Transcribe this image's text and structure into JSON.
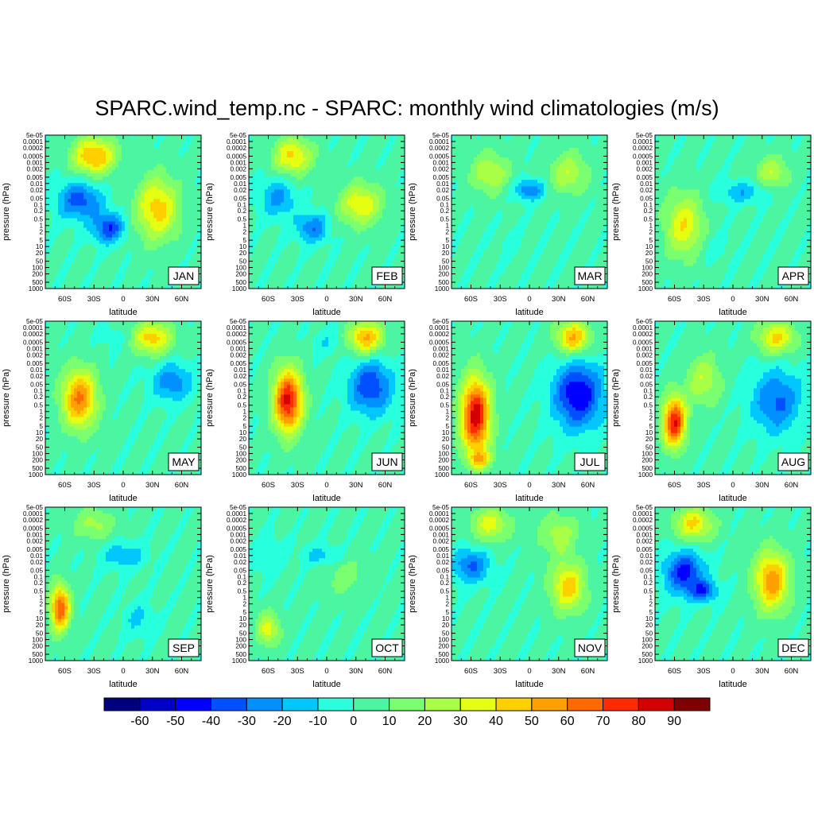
{
  "title": "SPARC.wind_temp.nc - SPARC: monthly wind climatologies (m/s)",
  "chart_data": {
    "type": "heatmap",
    "xlabel": "latitude",
    "ylabel": "pressure (hPa)",
    "x_ticks": [
      "60S",
      "30S",
      "0",
      "30N",
      "60N"
    ],
    "x_tick_values": [
      -60,
      -30,
      0,
      30,
      60
    ],
    "xlim": [
      -80,
      80
    ],
    "y_ticks": [
      "5e-05",
      "0.0001",
      "0.0002",
      "0.0005",
      "0.001",
      "0.002",
      "0.005",
      "0.01",
      "0.02",
      "0.05",
      "0.1",
      "0.2",
      "0.5",
      "1",
      "2",
      "5",
      "10",
      "20",
      "50",
      "100",
      "200",
      "500",
      "1000"
    ],
    "y_scale": "log",
    "ylim": [
      1000,
      5e-05
    ],
    "colorbar": {
      "labels": [
        "-60",
        "-50",
        "-40",
        "-30",
        "-20",
        "-10",
        "0",
        "10",
        "20",
        "30",
        "40",
        "50",
        "60",
        "70",
        "80",
        "90"
      ],
      "colors": [
        "#00007f",
        "#0000c8",
        "#0000ff",
        "#0050ff",
        "#0090ff",
        "#00c8ff",
        "#29ffdc",
        "#4cf5a0",
        "#7aff6e",
        "#a8ff45",
        "#e4ff12",
        "#ffd000",
        "#ffa000",
        "#ff6a00",
        "#ff2a00",
        "#d40000",
        "#7f0000"
      ]
    },
    "panels": [
      {
        "label": "JAN",
        "blobs": [
          {
            "lat": -45,
            "logp": -1.2,
            "w": 0.2,
            "dlat": 22,
            "dlp": 0.9
          },
          {
            "lat": -15,
            "logp": 0.1,
            "w": 0.18,
            "dlat": 16,
            "dlp": 0.7
          },
          {
            "lat": -30,
            "logp": -3.3,
            "w": 0.72,
            "dlat": 22,
            "dlp": 0.9
          },
          {
            "lat": 35,
            "logp": -0.8,
            "w": 0.68,
            "dlat": 22,
            "dlp": 1.5
          }
        ]
      },
      {
        "label": "FEB",
        "blobs": [
          {
            "lat": -50,
            "logp": -1.3,
            "w": 0.27,
            "dlat": 18,
            "dlp": 0.9
          },
          {
            "lat": -15,
            "logp": 0.1,
            "w": 0.24,
            "dlat": 16,
            "dlp": 0.7
          },
          {
            "lat": -35,
            "logp": -3.3,
            "w": 0.66,
            "dlat": 20,
            "dlp": 0.9
          },
          {
            "lat": 35,
            "logp": -1.0,
            "w": 0.64,
            "dlat": 22,
            "dlp": 1.0
          }
        ]
      },
      {
        "label": "MAR",
        "blobs": [
          {
            "lat": 0,
            "logp": -1.7,
            "w": 0.24,
            "dlat": 16,
            "dlp": 0.5
          },
          {
            "lat": -40,
            "logp": -2.5,
            "w": 0.58,
            "dlat": 20,
            "dlp": 1.0
          },
          {
            "lat": 40,
            "logp": -2.5,
            "w": 0.58,
            "dlat": 20,
            "dlp": 1.0
          },
          {
            "lat": -20,
            "logp": 0.8,
            "w": 0.4,
            "dlat": 15,
            "dlp": 0.8
          }
        ]
      },
      {
        "label": "APR",
        "blobs": [
          {
            "lat": 10,
            "logp": -1.6,
            "w": 0.3,
            "dlat": 25,
            "dlp": 0.5
          },
          {
            "lat": -50,
            "logp": 0.0,
            "w": 0.64,
            "dlat": 20,
            "dlp": 1.5
          },
          {
            "lat": 40,
            "logp": -2.5,
            "w": 0.58,
            "dlat": 18,
            "dlp": 0.8
          },
          {
            "lat": -20,
            "logp": 1.0,
            "w": 0.38,
            "dlat": 15,
            "dlp": 0.7
          }
        ]
      },
      {
        "label": "MAY",
        "blobs": [
          {
            "lat": -45,
            "logp": -0.6,
            "w": 0.77,
            "dlat": 18,
            "dlp": 1.4
          },
          {
            "lat": 50,
            "logp": -1.4,
            "w": 0.25,
            "dlat": 20,
            "dlp": 0.9
          },
          {
            "lat": 30,
            "logp": -3.5,
            "w": 0.68,
            "dlat": 20,
            "dlp": 0.8
          },
          {
            "lat": -10,
            "logp": -3.5,
            "w": 0.38,
            "dlat": 15,
            "dlp": 0.6
          }
        ]
      },
      {
        "label": "JUN",
        "blobs": [
          {
            "lat": -40,
            "logp": -0.5,
            "w": 0.9,
            "dlat": 15,
            "dlp": 1.5
          },
          {
            "lat": 45,
            "logp": -1.2,
            "w": 0.18,
            "dlat": 22,
            "dlp": 1.3
          },
          {
            "lat": 40,
            "logp": -3.5,
            "w": 0.72,
            "dlat": 18,
            "dlp": 0.8
          },
          {
            "lat": 0,
            "logp": -3.3,
            "w": 0.36,
            "dlat": 15,
            "dlp": 0.6
          }
        ]
      },
      {
        "label": "JUL",
        "blobs": [
          {
            "lat": -55,
            "logp": 0.2,
            "w": 0.92,
            "dlat": 15,
            "dlp": 1.8
          },
          {
            "lat": 50,
            "logp": -0.8,
            "w": 0.12,
            "dlat": 25,
            "dlp": 1.6
          },
          {
            "lat": 45,
            "logp": -3.5,
            "w": 0.72,
            "dlat": 18,
            "dlp": 0.8
          },
          {
            "lat": -50,
            "logp": 2.3,
            "w": 0.62,
            "dlat": 12,
            "dlp": 0.4
          }
        ]
      },
      {
        "label": "AUG",
        "blobs": [
          {
            "lat": -60,
            "logp": 0.5,
            "w": 0.88,
            "dlat": 12,
            "dlp": 1.2
          },
          {
            "lat": 45,
            "logp": -0.5,
            "w": 0.22,
            "dlat": 25,
            "dlp": 1.5
          },
          {
            "lat": 45,
            "logp": -3.5,
            "w": 0.66,
            "dlat": 20,
            "dlp": 0.8
          },
          {
            "lat": -30,
            "logp": -1.5,
            "w": 0.58,
            "dlat": 18,
            "dlp": 1.2
          }
        ]
      },
      {
        "label": "SEP",
        "blobs": [
          {
            "lat": -65,
            "logp": 0.5,
            "w": 0.82,
            "dlat": 10,
            "dlp": 1.1
          },
          {
            "lat": 0,
            "logp": -2.0,
            "w": 0.3,
            "dlat": 22,
            "dlp": 0.6
          },
          {
            "lat": 15,
            "logp": 1.0,
            "w": 0.34,
            "dlat": 15,
            "dlp": 0.8
          },
          {
            "lat": -30,
            "logp": -3.5,
            "w": 0.55,
            "dlat": 20,
            "dlp": 0.8
          }
        ]
      },
      {
        "label": "OCT",
        "blobs": [
          {
            "lat": -60,
            "logp": -2.0,
            "w": 0.35,
            "dlat": 15,
            "dlp": 0.8
          },
          {
            "lat": -5,
            "logp": -2.0,
            "w": 0.32,
            "dlat": 20,
            "dlp": 0.5
          },
          {
            "lat": -60,
            "logp": 1.5,
            "w": 0.62,
            "dlat": 12,
            "dlp": 0.8
          },
          {
            "lat": 20,
            "logp": -1.0,
            "w": 0.5,
            "dlat": 25,
            "dlp": 1.0
          }
        ]
      },
      {
        "label": "NOV",
        "blobs": [
          {
            "lat": -60,
            "logp": -1.5,
            "w": 0.22,
            "dlat": 18,
            "dlp": 0.8
          },
          {
            "lat": 40,
            "logp": -0.5,
            "w": 0.68,
            "dlat": 18,
            "dlp": 1.2
          },
          {
            "lat": -40,
            "logp": -3.5,
            "w": 0.62,
            "dlat": 20,
            "dlp": 0.8
          },
          {
            "lat": 30,
            "logp": -3.0,
            "w": 0.56,
            "dlat": 20,
            "dlp": 1.0
          }
        ]
      },
      {
        "label": "DEC",
        "blobs": [
          {
            "lat": -50,
            "logp": -1.2,
            "w": 0.15,
            "dlat": 20,
            "dlp": 1.0
          },
          {
            "lat": -30,
            "logp": -0.3,
            "w": 0.22,
            "dlat": 15,
            "dlp": 0.5
          },
          {
            "lat": 40,
            "logp": -0.8,
            "w": 0.75,
            "dlat": 18,
            "dlp": 1.4
          },
          {
            "lat": -40,
            "logp": -3.5,
            "w": 0.66,
            "dlat": 20,
            "dlp": 0.8
          }
        ]
      }
    ]
  }
}
